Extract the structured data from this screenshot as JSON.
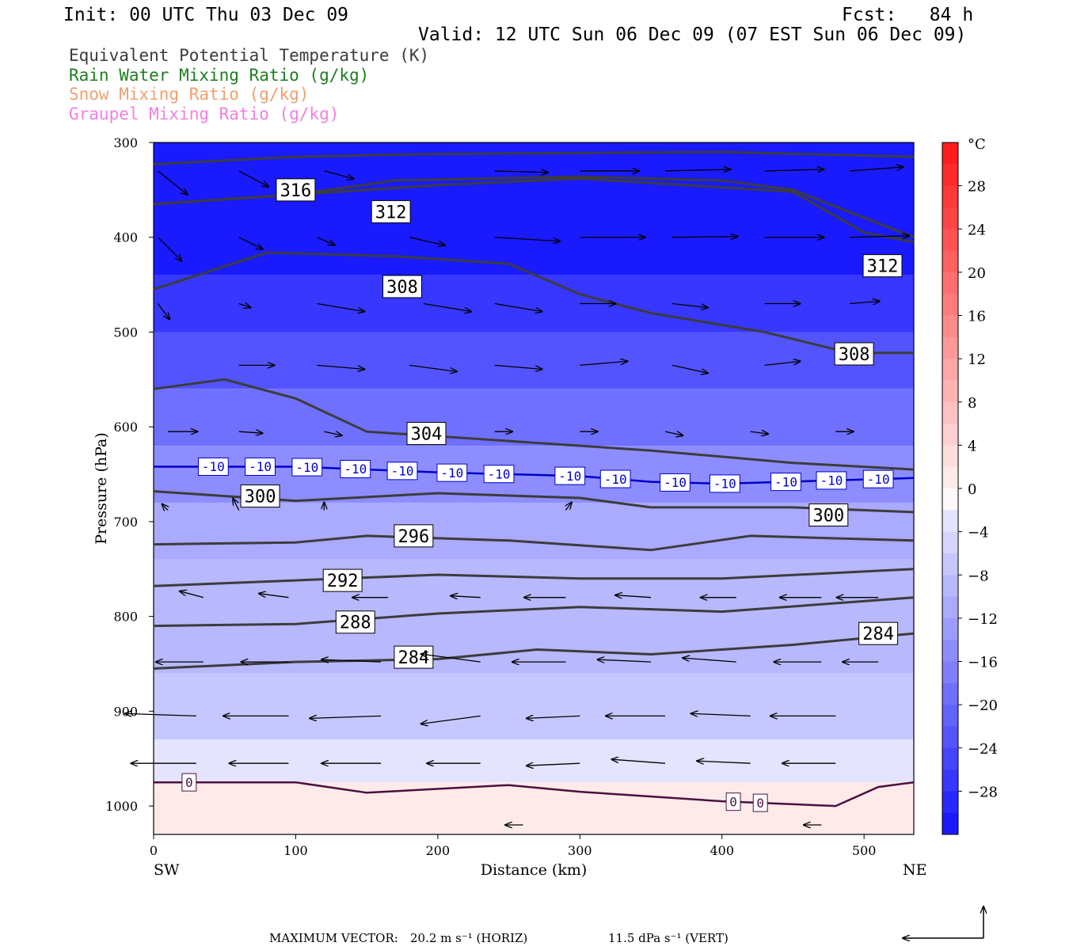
{
  "header": {
    "init": "Init: 00 UTC Thu 03 Dec 09",
    "fcst": "Fcst:   84 h",
    "valid": "Valid: 12 UTC Sun 06 Dec 09 (07 EST Sun 06 Dec 09)"
  },
  "legend": [
    {
      "label": "Equivalent Potential Temperature (K)",
      "color": "#3c3c3c"
    },
    {
      "label": "Rain Water Mixing Ratio (g/kg)",
      "color": "#1e7d1e"
    },
    {
      "label": "Snow Mixing Ratio (g/kg)",
      "color": "#f0a070"
    },
    {
      "label": "Graupel Mixing Ratio (g/kg)",
      "color": "#f080e0"
    }
  ],
  "footer": {
    "max_vector_label": "MAXIMUM VECTOR:",
    "horiz": "20.2 m s⁻¹ (HORIZ)",
    "vert": "11.5 dPa s⁻¹ (VERT)"
  },
  "chart_data": {
    "type": "heatmap",
    "xlabel": "Distance (km)",
    "ylabel": "Pressure (hPa)",
    "xlim": [
      0,
      535
    ],
    "ylim": [
      1030,
      300
    ],
    "x_ticks": [
      0,
      100,
      200,
      300,
      400,
      500
    ],
    "y_ticks": [
      300,
      400,
      500,
      600,
      700,
      800,
      900,
      1000
    ],
    "x_end_labels": {
      "left": "SW",
      "right": "NE"
    },
    "colorbar": {
      "unit": "°C",
      "tick_labels": [
        "28",
        "24",
        "20",
        "16",
        "12",
        "8",
        "4",
        "0",
        "−4",
        "−8",
        "−12",
        "−16",
        "−20",
        "−24",
        "−28"
      ],
      "levels_top_to_bottom": [
        32,
        30,
        28,
        26,
        24,
        22,
        20,
        18,
        16,
        14,
        12,
        10,
        8,
        6,
        4,
        2,
        0,
        -2,
        -4,
        -6,
        -8,
        -10,
        -12,
        -14,
        -16,
        -18,
        -20,
        -22,
        -24,
        -26,
        -28,
        -30
      ],
      "warm_color": "#ff2020",
      "cold_color": "#1a1aff"
    },
    "contours": {
      "theta_e": [
        {
          "level": 316,
          "label": "316",
          "points": [
            [
              0,
              323
            ],
            [
              100,
              315
            ],
            [
              200,
              312
            ],
            [
              300,
              311
            ],
            [
              400,
              310
            ],
            [
              535,
              315
            ]
          ],
          "label_at": [
            100,
            350
          ]
        },
        {
          "level": 312,
          "label": "312",
          "points": [
            [
              0,
              365
            ],
            [
              100,
              355
            ],
            [
              170,
              340
            ],
            [
              300,
              336
            ],
            [
              400,
              340
            ],
            [
              450,
              350
            ],
            [
              535,
              400
            ]
          ],
          "label_at": [
            167,
            373
          ]
        },
        {
          "level": 312,
          "label": "312",
          "points": [
            [
              0,
              365
            ],
            [
              100,
              355
            ],
            [
              200,
              345
            ],
            [
              300,
              338
            ],
            [
              450,
              352
            ],
            [
              500,
              395
            ],
            [
              535,
              405
            ]
          ],
          "label_at": [
            513,
            430
          ]
        },
        {
          "level": 308,
          "label": "308",
          "points": [
            [
              0,
              455
            ],
            [
              80,
              416
            ],
            [
              170,
              420
            ],
            [
              250,
              428
            ],
            [
              300,
              460
            ],
            [
              350,
              480
            ],
            [
              430,
              500
            ],
            [
              490,
              522
            ],
            [
              535,
              522
            ]
          ],
          "label_at": [
            175,
            452
          ]
        },
        {
          "level": 308,
          "label": "308",
          "points": [],
          "label_at": [
            493,
            523
          ]
        },
        {
          "level": 304,
          "label": "304",
          "points": [
            [
              0,
              560
            ],
            [
              50,
              550
            ],
            [
              100,
              570
            ],
            [
              150,
              605
            ],
            [
              250,
              615
            ],
            [
              350,
              625
            ],
            [
              450,
              638
            ],
            [
              535,
              645
            ]
          ],
          "label_at": [
            192,
            607
          ]
        },
        {
          "level": 300,
          "label": "300",
          "points": [
            [
              0,
              668
            ],
            [
              100,
              678
            ],
            [
              200,
              670
            ],
            [
              300,
              675
            ],
            [
              350,
              685
            ],
            [
              450,
              685
            ],
            [
              535,
              690
            ]
          ],
          "label_at": [
            75,
            673
          ]
        },
        {
          "level": 300,
          "label": "300",
          "points": [],
          "label_at": [
            475,
            693
          ]
        },
        {
          "level": 296,
          "label": "296",
          "points": [
            [
              0,
              724
            ],
            [
              100,
              722
            ],
            [
              150,
              715
            ],
            [
              250,
              720
            ],
            [
              350,
              730
            ],
            [
              420,
              715
            ],
            [
              535,
              720
            ]
          ],
          "label_at": [
            183,
            715
          ]
        },
        {
          "level": 292,
          "label": "292",
          "points": [
            [
              0,
              768
            ],
            [
              100,
              762
            ],
            [
              200,
              756
            ],
            [
              300,
              760
            ],
            [
              400,
              760
            ],
            [
              535,
              750
            ]
          ],
          "label_at": [
            133,
            762
          ]
        },
        {
          "level": 288,
          "label": "288",
          "points": [
            [
              0,
              810
            ],
            [
              100,
              808
            ],
            [
              200,
              797
            ],
            [
              300,
              790
            ],
            [
              400,
              795
            ],
            [
              535,
              780
            ]
          ],
          "label_at": [
            142,
            806
          ]
        },
        {
          "level": 284,
          "label": "284",
          "points": [
            [
              0,
              855
            ],
            [
              100,
              848
            ],
            [
              200,
              845
            ],
            [
              270,
              835
            ],
            [
              350,
              840
            ],
            [
              450,
              830
            ],
            [
              535,
              818
            ]
          ],
          "label_at": [
            183,
            843
          ]
        },
        {
          "level": 284,
          "label": "284",
          "points": [],
          "label_at": [
            510,
            818
          ]
        }
      ],
      "temperature": [
        {
          "level": -10,
          "label": "-10",
          "color": "#0000cc",
          "points": [
            [
              0,
              642
            ],
            [
              100,
              642
            ],
            [
              200,
              648
            ],
            [
              300,
              652
            ],
            [
              350,
              658
            ],
            [
              400,
              660
            ],
            [
              535,
              654
            ]
          ],
          "label_positions_km": [
            42,
            75,
            108,
            142,
            175,
            210,
            243,
            293,
            325,
            367,
            402,
            445,
            477,
            510
          ]
        },
        {
          "level": 0,
          "label": "0",
          "color": "#4a1040",
          "points": [
            [
              0,
              975
            ],
            [
              100,
              975
            ],
            [
              150,
              986
            ],
            [
              250,
              978
            ],
            [
              300,
              985
            ],
            [
              400,
              995
            ],
            [
              480,
              1000
            ],
            [
              510,
              980
            ],
            [
              535,
              975
            ]
          ],
          "label_positions_km": [
            25,
            408,
            427
          ]
        }
      ]
    },
    "wind_vectors": {
      "max_horizontal_m_s": 20.2,
      "max_vertical_dPa_s": 11.5,
      "vectors": [
        {
          "x": 3,
          "p": 330,
          "u": 25,
          "v": 30
        },
        {
          "x": 60,
          "p": 330,
          "u": 25,
          "v": 20
        },
        {
          "x": 120,
          "p": 330,
          "u": 25,
          "v": 10
        },
        {
          "x": 240,
          "p": 330,
          "u": 45,
          "v": 2
        },
        {
          "x": 300,
          "p": 330,
          "u": 50,
          "v": 0
        },
        {
          "x": 360,
          "p": 330,
          "u": 55,
          "v": -2
        },
        {
          "x": 430,
          "p": 330,
          "u": 50,
          "v": -2
        },
        {
          "x": 490,
          "p": 330,
          "u": 45,
          "v": -5
        },
        {
          "x": 3,
          "p": 400,
          "u": 20,
          "v": 30
        },
        {
          "x": 60,
          "p": 400,
          "u": 20,
          "v": 15
        },
        {
          "x": 115,
          "p": 400,
          "u": 15,
          "v": 10
        },
        {
          "x": 180,
          "p": 400,
          "u": 30,
          "v": 10
        },
        {
          "x": 240,
          "p": 400,
          "u": 55,
          "v": 5
        },
        {
          "x": 300,
          "p": 400,
          "u": 55,
          "v": 0
        },
        {
          "x": 365,
          "p": 400,
          "u": 55,
          "v": -1
        },
        {
          "x": 430,
          "p": 400,
          "u": 50,
          "v": 0
        },
        {
          "x": 490,
          "p": 400,
          "u": 50,
          "v": -2
        },
        {
          "x": 3,
          "p": 470,
          "u": 10,
          "v": 20
        },
        {
          "x": 60,
          "p": 470,
          "u": 10,
          "v": 5
        },
        {
          "x": 115,
          "p": 470,
          "u": 40,
          "v": 10
        },
        {
          "x": 190,
          "p": 470,
          "u": 40,
          "v": 10
        },
        {
          "x": 240,
          "p": 470,
          "u": 40,
          "v": 10
        },
        {
          "x": 300,
          "p": 470,
          "u": 30,
          "v": 0
        },
        {
          "x": 365,
          "p": 470,
          "u": 30,
          "v": 5
        },
        {
          "x": 430,
          "p": 470,
          "u": 30,
          "v": 0
        },
        {
          "x": 490,
          "p": 470,
          "u": 25,
          "v": -3
        },
        {
          "x": 60,
          "p": 535,
          "u": 30,
          "v": 0
        },
        {
          "x": 115,
          "p": 535,
          "u": 40,
          "v": 5
        },
        {
          "x": 180,
          "p": 535,
          "u": 40,
          "v": 8
        },
        {
          "x": 240,
          "p": 535,
          "u": 40,
          "v": 5
        },
        {
          "x": 300,
          "p": 535,
          "u": 40,
          "v": -5
        },
        {
          "x": 365,
          "p": 535,
          "u": 30,
          "v": 10
        },
        {
          "x": 430,
          "p": 535,
          "u": 30,
          "v": -5
        },
        {
          "x": 10,
          "p": 605,
          "u": 25,
          "v": 0
        },
        {
          "x": 60,
          "p": 605,
          "u": 20,
          "v": 2
        },
        {
          "x": 120,
          "p": 605,
          "u": 15,
          "v": 5
        },
        {
          "x": 240,
          "p": 605,
          "u": 15,
          "v": 0
        },
        {
          "x": 300,
          "p": 605,
          "u": 15,
          "v": 0
        },
        {
          "x": 360,
          "p": 605,
          "u": 15,
          "v": 5
        },
        {
          "x": 420,
          "p": 605,
          "u": 15,
          "v": 3
        },
        {
          "x": 480,
          "p": 605,
          "u": 15,
          "v": 0
        },
        {
          "x": 10,
          "p": 688,
          "u": -5,
          "v": -8
        },
        {
          "x": 60,
          "p": 688,
          "u": -5,
          "v": -15
        },
        {
          "x": 120,
          "p": 688,
          "u": 0,
          "v": -10
        },
        {
          "x": 290,
          "p": 688,
          "u": 5,
          "v": -10
        },
        {
          "x": 35,
          "p": 780,
          "u": -20,
          "v": -8
        },
        {
          "x": 95,
          "p": 780,
          "u": -25,
          "v": -5
        },
        {
          "x": 165,
          "p": 780,
          "u": -30,
          "v": 0
        },
        {
          "x": 230,
          "p": 780,
          "u": -25,
          "v": -2
        },
        {
          "x": 290,
          "p": 780,
          "u": -35,
          "v": 0
        },
        {
          "x": 350,
          "p": 780,
          "u": -30,
          "v": -3
        },
        {
          "x": 410,
          "p": 780,
          "u": -30,
          "v": 0
        },
        {
          "x": 470,
          "p": 780,
          "u": -35,
          "v": 0
        },
        {
          "x": 510,
          "p": 780,
          "u": -35,
          "v": 0
        },
        {
          "x": 35,
          "p": 848,
          "u": -40,
          "v": 0
        },
        {
          "x": 95,
          "p": 848,
          "u": -40,
          "v": 0
        },
        {
          "x": 160,
          "p": 848,
          "u": -50,
          "v": -3
        },
        {
          "x": 230,
          "p": 848,
          "u": -50,
          "v": -10
        },
        {
          "x": 290,
          "p": 848,
          "u": -45,
          "v": 0
        },
        {
          "x": 350,
          "p": 848,
          "u": -45,
          "v": -3
        },
        {
          "x": 410,
          "p": 848,
          "u": -45,
          "v": -5
        },
        {
          "x": 470,
          "p": 848,
          "u": -40,
          "v": 0
        },
        {
          "x": 510,
          "p": 848,
          "u": -30,
          "v": 0
        },
        {
          "x": 30,
          "p": 905,
          "u": -60,
          "v": -3
        },
        {
          "x": 95,
          "p": 905,
          "u": -55,
          "v": 0
        },
        {
          "x": 160,
          "p": 905,
          "u": -60,
          "v": 3
        },
        {
          "x": 230,
          "p": 905,
          "u": -50,
          "v": 10
        },
        {
          "x": 300,
          "p": 905,
          "u": -45,
          "v": 3
        },
        {
          "x": 360,
          "p": 905,
          "u": -50,
          "v": 0
        },
        {
          "x": 420,
          "p": 905,
          "u": -50,
          "v": -3
        },
        {
          "x": 480,
          "p": 905,
          "u": -55,
          "v": 0
        },
        {
          "x": 30,
          "p": 955,
          "u": -55,
          "v": 0
        },
        {
          "x": 95,
          "p": 955,
          "u": -50,
          "v": 0
        },
        {
          "x": 160,
          "p": 955,
          "u": -50,
          "v": 0
        },
        {
          "x": 230,
          "p": 955,
          "u": -45,
          "v": 0
        },
        {
          "x": 300,
          "p": 955,
          "u": -45,
          "v": 3
        },
        {
          "x": 360,
          "p": 955,
          "u": -45,
          "v": -5
        },
        {
          "x": 420,
          "p": 955,
          "u": -45,
          "v": -3
        },
        {
          "x": 480,
          "p": 955,
          "u": -45,
          "v": 0
        },
        {
          "x": 260,
          "p": 1020,
          "u": -15,
          "v": 0
        },
        {
          "x": 470,
          "p": 1020,
          "u": -15,
          "v": 0
        }
      ]
    },
    "fill_bands": [
      {
        "p_top": 300,
        "p_bot": 440,
        "temp_c": -30
      },
      {
        "p_top": 440,
        "p_bot": 500,
        "temp_c": -26
      },
      {
        "p_top": 500,
        "p_bot": 560,
        "temp_c": -22
      },
      {
        "p_top": 560,
        "p_bot": 620,
        "temp_c": -18
      },
      {
        "p_top": 620,
        "p_bot": 680,
        "temp_c": -14
      },
      {
        "p_top": 680,
        "p_bot": 740,
        "temp_c": -10
      },
      {
        "p_top": 740,
        "p_bot": 860,
        "temp_c": -8
      },
      {
        "p_top": 860,
        "p_bot": 930,
        "temp_c": -6
      },
      {
        "p_top": 930,
        "p_bot": 975,
        "temp_c": -2
      },
      {
        "p_top": 975,
        "p_bot": 1030,
        "temp_c": 2
      }
    ]
  }
}
